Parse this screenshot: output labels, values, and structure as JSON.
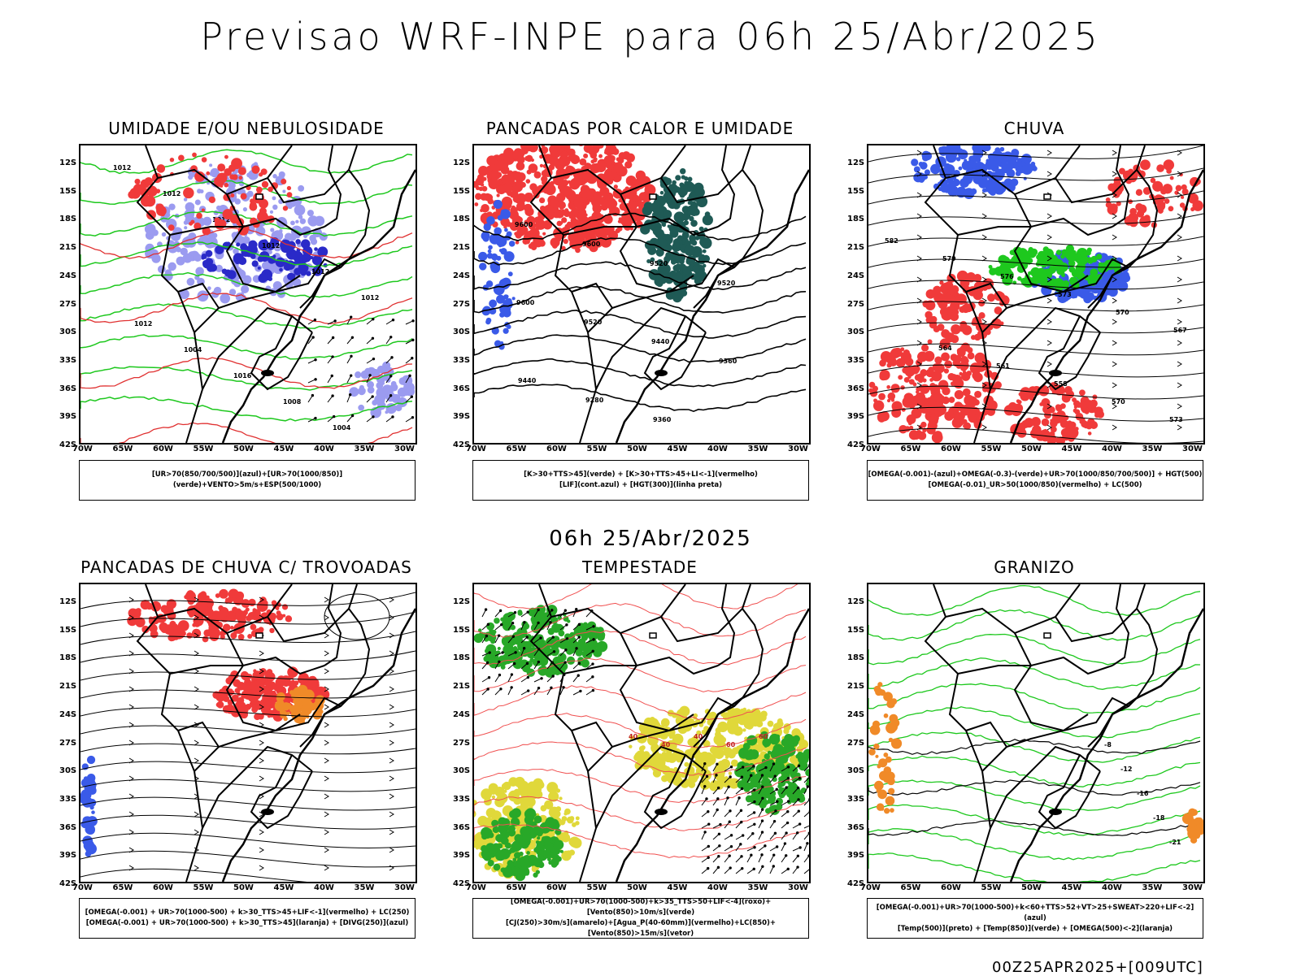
{
  "title": "Previsao WRF-INPE  para 06h 25/Abr/2025",
  "subtitle": "06h 25/Abr/2025",
  "footer": "00Z25APR2025+[009UTC]",
  "lat_labels": [
    "12S",
    "15S",
    "18S",
    "21S",
    "24S",
    "27S",
    "30S",
    "33S",
    "36S",
    "39S",
    "42S"
  ],
  "lon_labels": [
    "70W",
    "65W",
    "60W",
    "55W",
    "50W",
    "45W",
    "40W",
    "35W",
    "30W"
  ],
  "colors": {
    "red": "#f03a3a",
    "blue": "#3a5ae8",
    "green": "#1ec81e",
    "darkteal": "#1f5a55",
    "lavender": "#9b9bf0",
    "orange": "#f08a28",
    "yellow": "#e0d83a"
  },
  "panels": [
    {
      "title": "UMIDADE E/OU NEBULOSIDADE",
      "legend": [
        "[UR>70(850/700/500)](azul)+[UR>70(1000/850)](verde)+VENTO>5m/s+ESP(500/1000)"
      ],
      "contour_labels": [
        "1012",
        "1012",
        "1012",
        "1012",
        "1012",
        "1012",
        "1012",
        "1004",
        "1016",
        "1008",
        "1004"
      ]
    },
    {
      "title": "PANCADAS POR CALOR E UMIDADE",
      "legend": [
        "[K>30+TTS>45](verde) + [K>30+TTS>45+LI<-1](vermelho)",
        "[LIF](cont.azul) + [HGT(300)](linha preta)"
      ],
      "contour_labels": [
        "9600",
        "9600",
        "9520",
        "9520",
        "9600",
        "9520",
        "9440",
        "9360",
        "9440",
        "9280",
        "9360"
      ]
    },
    {
      "title": "CHUVA",
      "legend": [
        "[OMEGA(-0.001)-(azul)+OMEGA(-0.3)-(verde)+UR>70(1000/850/700/500)] + HGT(500)",
        "[OMEGA(-0.01)_UR>50(1000/850)(vermelho) + LC(500)"
      ],
      "contour_labels": [
        "582",
        "579",
        "576",
        "573",
        "570",
        "567",
        "564",
        "561",
        "558",
        "570",
        "573"
      ]
    },
    {
      "title": "PANCADAS DE CHUVA C/ TROVOADAS",
      "legend": [
        "[OMEGA(-0.001) + UR>70(1000-500) + k>30_TTS>45+LIF<-1](vermelho) + LC(250)",
        "[OMEGA(-0.001) + UR>70(1000-500) + k>30_TTS>45](laranja) + [DIVG(250)](azul)"
      ],
      "contour_labels": []
    },
    {
      "title": "TEMPESTADE",
      "legend": [
        "[OMEGA(-0.001)+UR>70(1000-500)+k>35_TTS>50+LIF<-4](roxo)+[Vento(850)>10m/s](verde)",
        "[CJ(250)>30m/s](amarelo)+[Agua_P(40-60mm)](vermelho)+LC(850)+[Vento(850)>15m/s](vetor)"
      ],
      "contour_labels": [
        "40",
        "40",
        "40",
        "60",
        "60"
      ]
    },
    {
      "title": "GRANIZO",
      "legend": [
        "[OMEGA(-0.001)+UR>70(1000-500)+k<60+TTS>52+VT>25+SWEAT>220+LIF<-2](azul)",
        "[Temp(500)](preto) + [Temp(850)](verde) + [OMEGA(500)<-2](laranja)"
      ],
      "contour_labels": [
        "-8",
        "-12",
        "-16",
        "-18",
        "-21"
      ]
    }
  ]
}
